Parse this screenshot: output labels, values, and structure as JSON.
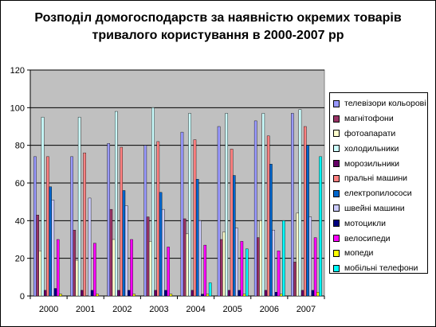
{
  "title_lines": [
    "Розподіл домогосподарств за наявністю окремих товарів",
    "тривалого користування в 2000-2007 рр"
  ],
  "chart_data": {
    "type": "bar",
    "categories": [
      "2000",
      "2001",
      "2002",
      "2003",
      "2004",
      "2005",
      "2006",
      "2007"
    ],
    "ylim": [
      0,
      120
    ],
    "yticks": [
      0,
      20,
      40,
      60,
      80,
      100,
      120
    ],
    "plot_background": "#c0c0c0",
    "grid": true,
    "legend_position": "right",
    "series": [
      {
        "name": "телевізори кольорові",
        "color": "#9999ff",
        "values": [
          74,
          74,
          81,
          80,
          87,
          90,
          93,
          97
        ]
      },
      {
        "name": "магнітофони",
        "color": "#993366",
        "values": [
          43,
          35,
          46,
          42,
          41,
          30,
          31,
          18
        ]
      },
      {
        "name": "фотоапарати",
        "color": "#ffffcc",
        "values": [
          24,
          19,
          30,
          29,
          33,
          34,
          40,
          44
        ]
      },
      {
        "name": "холодильники",
        "color": "#ccffff",
        "values": [
          95,
          95,
          98,
          100,
          97,
          97,
          97,
          99
        ]
      },
      {
        "name": "морозильники",
        "color": "#660066",
        "values": [
          3,
          3,
          3,
          3,
          3,
          3,
          3,
          3
        ]
      },
      {
        "name": "пральні машини",
        "color": "#ff8080",
        "values": [
          74,
          76,
          79,
          82,
          83,
          78,
          85,
          90
        ]
      },
      {
        "name": "електропилососи",
        "color": "#0066cc",
        "values": [
          58,
          0,
          56,
          55,
          62,
          64,
          70,
          80
        ]
      },
      {
        "name": "швейні машини",
        "color": "#ccccff",
        "values": [
          51,
          52,
          48,
          46,
          40,
          36,
          35,
          42
        ]
      },
      {
        "name": "мотоцикли",
        "color": "#000080",
        "values": [
          4,
          3,
          3,
          3,
          1,
          3,
          2,
          3
        ]
      },
      {
        "name": "велосипеди",
        "color": "#ff00ff",
        "values": [
          30,
          28,
          30,
          26,
          27,
          29,
          24,
          31
        ]
      },
      {
        "name": "мопеди",
        "color": "#ffff00",
        "values": [
          1,
          1,
          1,
          1,
          1,
          1,
          1,
          2
        ]
      },
      {
        "name": "мобільні телефони",
        "color": "#00ffff",
        "values": [
          0,
          0,
          0,
          0,
          7,
          25,
          40,
          74
        ]
      }
    ]
  }
}
